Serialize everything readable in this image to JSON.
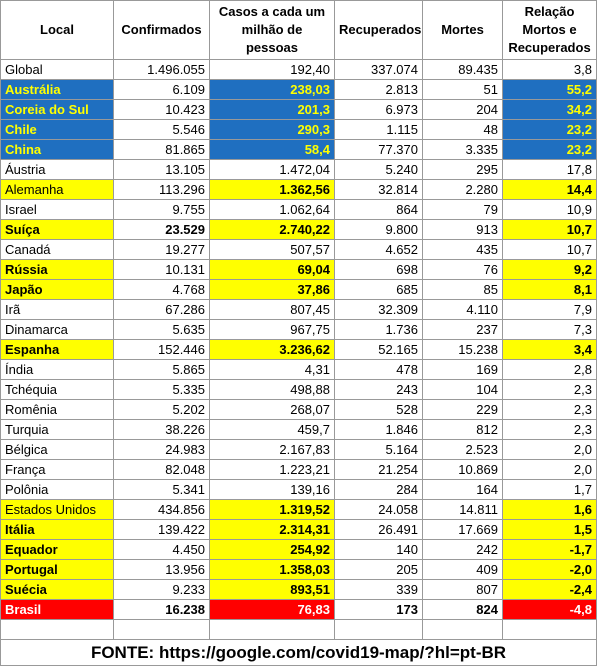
{
  "table": {
    "header": [
      "Local",
      "Confirmados",
      "Casos a cada um milhão de pessoas",
      "Recuperados",
      "Mortes",
      "Relação Mortos e Recuperados"
    ],
    "rows": [
      [
        "Global",
        "1.496.055",
        "192,40",
        "337.074",
        "89.435",
        "3,8"
      ],
      [
        "Austrália",
        "6.109",
        "238,03",
        "2.813",
        "51",
        "55,2"
      ],
      [
        "Coreia do Sul",
        "10.423",
        "201,3",
        "6.973",
        "204",
        "34,2"
      ],
      [
        "Chile",
        "5.546",
        "290,3",
        "1.115",
        "48",
        "23,2"
      ],
      [
        "China",
        "81.865",
        "58,4",
        "77.370",
        "3.335",
        "23,2"
      ],
      [
        "Áustria",
        "13.105",
        "1.472,04",
        "5.240",
        "295",
        "17,8"
      ],
      [
        "Alemanha",
        "113.296",
        "1.362,56",
        "32.814",
        "2.280",
        "14,4"
      ],
      [
        "Israel",
        "9.755",
        "1.062,64",
        "864",
        "79",
        "10,9"
      ],
      [
        "Suíça",
        "23.529",
        "2.740,22",
        "9.800",
        "913",
        "10,7"
      ],
      [
        "Canadá",
        "19.277",
        "507,57",
        "4.652",
        "435",
        "10,7"
      ],
      [
        "Rússia",
        "10.131",
        "69,04",
        "698",
        "76",
        "9,2"
      ],
      [
        "Japão",
        "4.768",
        "37,86",
        "685",
        "85",
        "8,1"
      ],
      [
        "Irã",
        "67.286",
        "807,45",
        "32.309",
        "4.110",
        "7,9"
      ],
      [
        "Dinamarca",
        "5.635",
        "967,75",
        "1.736",
        "237",
        "7,3"
      ],
      [
        "Espanha",
        "152.446",
        "3.236,62",
        "52.165",
        "15.238",
        "3,4"
      ],
      [
        "Índia",
        "5.865",
        "4,31",
        "478",
        "169",
        "2,8"
      ],
      [
        "Tchéquia",
        "5.335",
        "498,88",
        "243",
        "104",
        "2,3"
      ],
      [
        "Romênia",
        "5.202",
        "268,07",
        "528",
        "229",
        "2,3"
      ],
      [
        "Turquia",
        "38.226",
        "459,7",
        "1.846",
        "812",
        "2,3"
      ],
      [
        "Bélgica",
        "24.983",
        "2.167,83",
        "5.164",
        "2.523",
        "2,0"
      ],
      [
        "França",
        "82.048",
        "1.223,21",
        "21.254",
        "10.869",
        "2,0"
      ],
      [
        "Polônia",
        "5.341",
        "139,16",
        "284",
        "164",
        "1,7"
      ],
      [
        "Estados Unidos",
        "434.856",
        "1.319,52",
        "24.058",
        "14.811",
        "1,6"
      ],
      [
        "Itália",
        "139.422",
        "2.314,31",
        "26.491",
        "17.669",
        "1,5"
      ],
      [
        "Equador",
        "4.450",
        "254,92",
        "140",
        "242",
        "-1,7"
      ],
      [
        "Portugal",
        "13.956",
        "1.358,03",
        "205",
        "409",
        "-2,0"
      ],
      [
        "Suécia",
        "9.233",
        "893,51",
        "339",
        "807",
        "-2,4"
      ],
      [
        "Brasil",
        "16.238",
        "76,83",
        "173",
        "824",
        "-4,8"
      ]
    ]
  },
  "footer": "FONTE: https://google.com/covid19-map/?hl=pt-BR"
}
